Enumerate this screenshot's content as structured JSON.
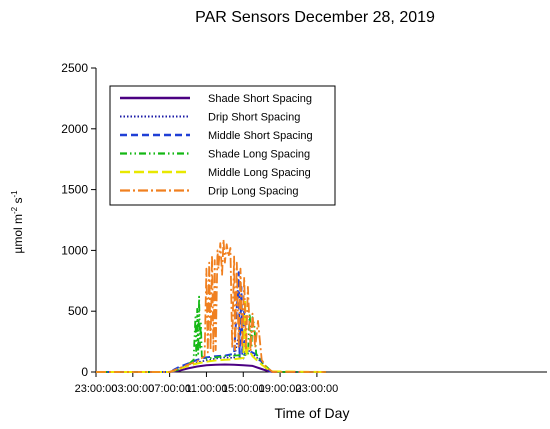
{
  "chart_data": {
    "type": "line",
    "title": "PAR Sensors December 28, 2019",
    "xlabel": "Time of Day",
    "ylabel_main": "µmol m",
    "ylabel_sup1": "-2",
    "ylabel_mid": " s",
    "ylabel_sup2": "-1",
    "x_range_hours": [
      -1,
      48
    ],
    "ylim": [
      0,
      2500
    ],
    "x_ticks": [
      {
        "h": -1,
        "label": "23:00:00"
      },
      {
        "h": 3,
        "label": "03:00:00"
      },
      {
        "h": 7,
        "label": "07:00:00"
      },
      {
        "h": 11,
        "label": "11:00:00"
      },
      {
        "h": 15,
        "label": "15:00:00"
      },
      {
        "h": 19,
        "label": "19:00:00"
      },
      {
        "h": 23,
        "label": "23:00:00"
      }
    ],
    "y_ticks": [
      0,
      500,
      1000,
      1500,
      2000,
      2500
    ],
    "legend_position": "top-left",
    "series": [
      {
        "name": "Shade Short Spacing",
        "color": "#4b0082",
        "dash": "",
        "width": 2,
        "points": [
          [
            -1,
            0
          ],
          [
            7,
            0
          ],
          [
            8,
            10
          ],
          [
            9,
            30
          ],
          [
            10,
            45
          ],
          [
            11,
            55
          ],
          [
            12,
            60
          ],
          [
            13,
            62
          ],
          [
            14,
            60
          ],
          [
            15,
            55
          ],
          [
            16,
            50
          ],
          [
            17,
            25
          ],
          [
            17.8,
            5
          ],
          [
            18.5,
            0
          ],
          [
            24,
            0
          ]
        ]
      },
      {
        "name": "Drip Short Spacing",
        "color": "#1a1aa6",
        "dash": "1.5,2",
        "width": 1.6,
        "points": [
          [
            -1,
            0
          ],
          [
            7,
            0
          ],
          [
            8,
            30
          ],
          [
            9,
            60
          ],
          [
            10,
            80
          ],
          [
            11,
            95
          ],
          [
            12,
            110
          ],
          [
            13,
            120
          ],
          [
            14,
            115
          ],
          [
            14.5,
            300
          ],
          [
            14.6,
            120
          ],
          [
            15,
            110
          ],
          [
            15.5,
            180
          ],
          [
            16,
            150
          ],
          [
            16.6,
            110
          ],
          [
            17.3,
            40
          ],
          [
            18,
            0
          ],
          [
            24,
            0
          ]
        ]
      },
      {
        "name": "Middle Short Spacing",
        "color": "#1f3fd6",
        "dash": "7,4",
        "width": 2,
        "points": [
          [
            -1,
            0
          ],
          [
            7,
            0
          ],
          [
            8,
            40
          ],
          [
            9,
            70
          ],
          [
            10,
            100
          ],
          [
            11,
            120
          ],
          [
            12,
            130
          ],
          [
            13,
            135
          ],
          [
            14,
            150
          ],
          [
            14.4,
            650
          ],
          [
            14.5,
            820
          ],
          [
            14.6,
            120
          ],
          [
            14.8,
            700
          ],
          [
            14.9,
            150
          ],
          [
            15.1,
            500
          ],
          [
            15.2,
            140
          ],
          [
            15.6,
            170
          ],
          [
            16,
            160
          ],
          [
            16.5,
            140
          ],
          [
            17.2,
            60
          ],
          [
            18,
            0
          ],
          [
            24,
            0
          ]
        ]
      },
      {
        "name": "Shade Long Spacing",
        "color": "#14b814",
        "dash": "7,3,1.5,3,1.5,3",
        "width": 1.8,
        "points": [
          [
            -1,
            0
          ],
          [
            7,
            0
          ],
          [
            8,
            20
          ],
          [
            9,
            60
          ],
          [
            9.6,
            100
          ],
          [
            9.8,
            450
          ],
          [
            9.9,
            120
          ],
          [
            10,
            520
          ],
          [
            10.1,
            150
          ],
          [
            10.2,
            620
          ],
          [
            10.3,
            200
          ],
          [
            10.4,
            400
          ],
          [
            10.5,
            130
          ],
          [
            11,
            110
          ],
          [
            12,
            120
          ],
          [
            13,
            130
          ],
          [
            14,
            135
          ],
          [
            15,
            140
          ],
          [
            15.5,
            150
          ],
          [
            15.7,
            480
          ],
          [
            15.9,
            200
          ],
          [
            16,
            450
          ],
          [
            16.2,
            380
          ],
          [
            16.4,
            150
          ],
          [
            17,
            80
          ],
          [
            18,
            10
          ],
          [
            18.5,
            0
          ],
          [
            24,
            0
          ]
        ]
      },
      {
        "name": "Middle Long Spacing",
        "color": "#e8e800",
        "dash": "10,4",
        "width": 2,
        "points": [
          [
            -1,
            0
          ],
          [
            7,
            0
          ],
          [
            8,
            25
          ],
          [
            9,
            50
          ],
          [
            10,
            70
          ],
          [
            11,
            85
          ],
          [
            12,
            95
          ],
          [
            13,
            100
          ],
          [
            14,
            105
          ],
          [
            14.5,
            110
          ],
          [
            15,
            115
          ],
          [
            15.2,
            600
          ],
          [
            15.3,
            130
          ],
          [
            15.5,
            200
          ],
          [
            16,
            130
          ],
          [
            17,
            60
          ],
          [
            18,
            5
          ],
          [
            24,
            0
          ]
        ]
      },
      {
        "name": "Drip Long Spacing",
        "color": "#f08020",
        "dash": "10,3,2,3",
        "width": 1.8,
        "points": [
          [
            -1,
            0
          ],
          [
            7,
            0
          ],
          [
            8,
            30
          ],
          [
            9,
            60
          ],
          [
            10,
            90
          ],
          [
            10.8,
            130
          ],
          [
            11,
            850
          ],
          [
            11.15,
            160
          ],
          [
            11.3,
            900
          ],
          [
            11.45,
            180
          ],
          [
            11.6,
            960
          ],
          [
            11.75,
            170
          ],
          [
            11.9,
            920
          ],
          [
            12,
            180
          ],
          [
            12.2,
            1000
          ],
          [
            12.3,
            850
          ],
          [
            12.5,
            1060
          ],
          [
            12.7,
            800
          ],
          [
            12.85,
            1090
          ],
          [
            13,
            900
          ],
          [
            13.2,
            1050
          ],
          [
            13.4,
            950
          ],
          [
            13.6,
            1020
          ],
          [
            13.8,
            200
          ],
          [
            14,
            950
          ],
          [
            14.1,
            180
          ],
          [
            14.3,
            900
          ],
          [
            14.5,
            200
          ],
          [
            14.7,
            850
          ],
          [
            14.9,
            200
          ],
          [
            15.1,
            780
          ],
          [
            15.3,
            180
          ],
          [
            15.5,
            700
          ],
          [
            15.8,
            170
          ],
          [
            16,
            480
          ],
          [
            16.3,
            200
          ],
          [
            16.6,
            420
          ],
          [
            17,
            100
          ],
          [
            17.5,
            40
          ],
          [
            18.2,
            0
          ],
          [
            24,
            0
          ]
        ]
      }
    ]
  }
}
